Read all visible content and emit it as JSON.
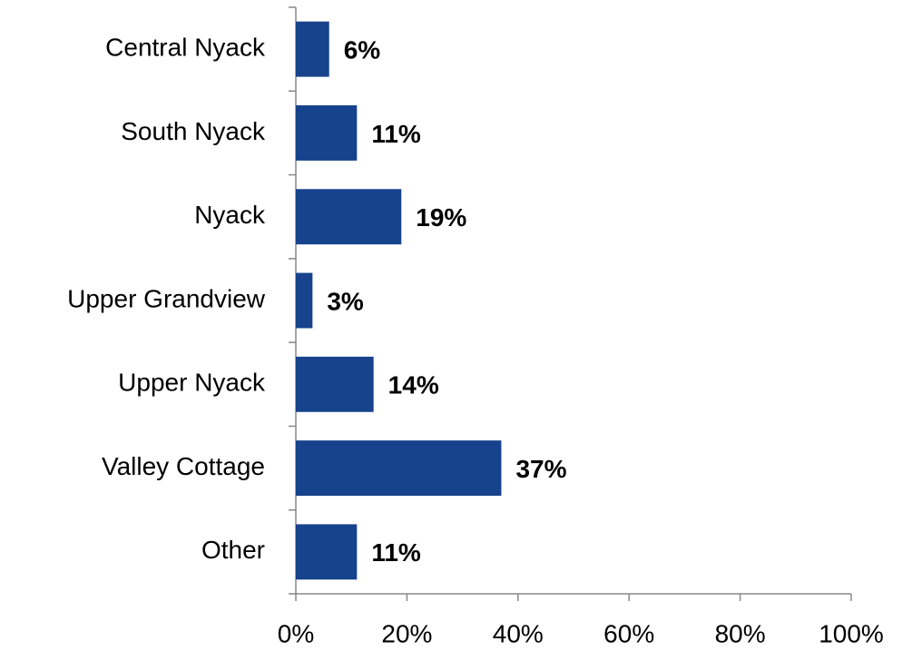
{
  "chart_data": {
    "type": "bar",
    "orientation": "horizontal",
    "categories": [
      "Central Nyack",
      "South Nyack",
      "Nyack",
      "Upper Grandview",
      "Upper Nyack",
      "Valley Cottage",
      "Other"
    ],
    "values": [
      6,
      11,
      19,
      3,
      14,
      37,
      11
    ],
    "value_labels": [
      "6%",
      "11%",
      "19%",
      "3%",
      "14%",
      "37%",
      "11%"
    ],
    "color": "#17428c",
    "xlim": [
      0,
      100
    ],
    "xticks": [
      {
        "value": 0,
        "label": "0%"
      },
      {
        "value": 20,
        "label": "20%"
      },
      {
        "value": 40,
        "label": "40%"
      },
      {
        "value": 60,
        "label": "60%"
      },
      {
        "value": 80,
        "label": "80%"
      },
      {
        "value": 100,
        "label": "100%"
      }
    ],
    "grid": false
  }
}
